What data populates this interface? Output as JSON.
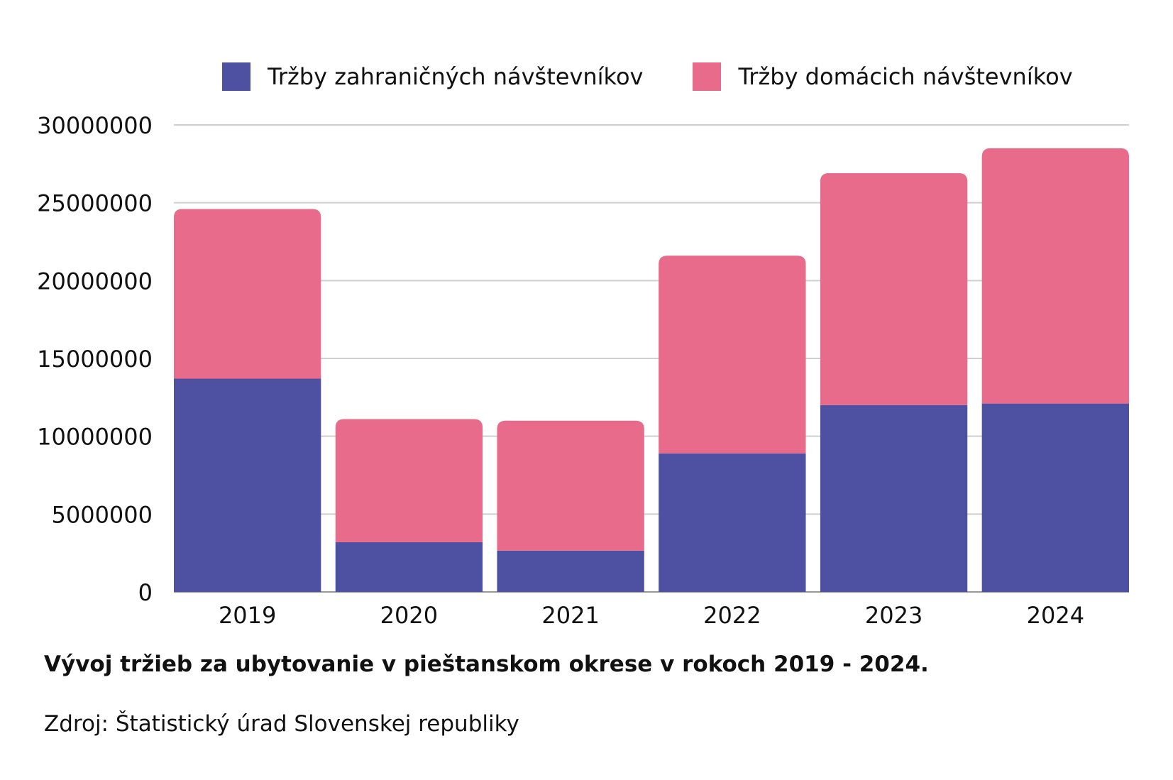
{
  "chart_data": {
    "type": "bar",
    "stacked": true,
    "title": "Vývoj tržieb za ubytovanie v pieštanskom okrese v rokoch 2019 - 2024.",
    "source": "Zdroj: Štatistický úrad Slovenskej republiky",
    "xlabel": "",
    "ylabel": "",
    "ylim": [
      0,
      30000000
    ],
    "yticks": [
      0,
      5000000,
      10000000,
      15000000,
      20000000,
      25000000,
      30000000
    ],
    "ytick_labels": [
      "0",
      "5000000",
      "10000000",
      "15000000",
      "20000000",
      "25000000",
      "30000000"
    ],
    "grid": true,
    "legend_position": "top",
    "categories": [
      "2019",
      "2020",
      "2021",
      "2022",
      "2023",
      "2024"
    ],
    "series": [
      {
        "name": "Tržby zahraničných návštevníkov",
        "color": "#4e50a2",
        "values": [
          13700000,
          3200000,
          2650000,
          8900000,
          12000000,
          12100000
        ]
      },
      {
        "name": "Tržby domácich návštevníkov",
        "color": "#e86b8b",
        "values": [
          10900000,
          7900000,
          8350000,
          12700000,
          14900000,
          16400000
        ]
      }
    ]
  }
}
